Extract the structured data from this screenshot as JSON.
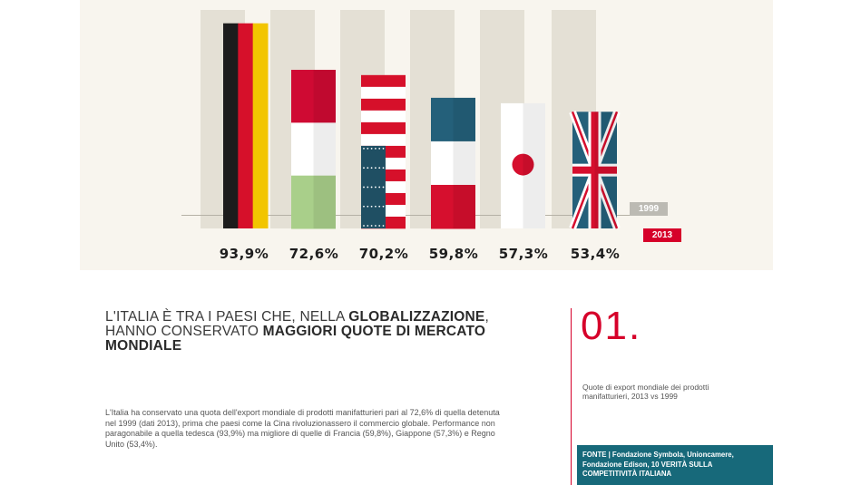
{
  "chart_data": {
    "type": "bar",
    "categories": [
      "Germania",
      "Italia",
      "Stati Uniti",
      "Francia",
      "Giappone",
      "Regno Unito"
    ],
    "values_label_fmt": "comma",
    "series": [
      {
        "name": "1999",
        "values": [
          100,
          100,
          100,
          100,
          100,
          100
        ]
      },
      {
        "name": "2013",
        "values": [
          93.9,
          72.6,
          70.2,
          59.8,
          57.3,
          53.4
        ]
      }
    ],
    "value_labels": [
      "93,9%",
      "72,6%",
      "70,2%",
      "59,8%",
      "57,3%",
      "53,4%"
    ],
    "flags": [
      "germany-flag",
      "italy-flag",
      "usa-flag",
      "france-flag",
      "japan-flag",
      "uk-flag"
    ],
    "ylim": [
      0,
      100
    ],
    "legend": [
      "1999",
      "2013"
    ],
    "colors": {
      "bar_1999": "#e4e0d5",
      "panel": "#f8f5ee",
      "tag_1999": "#bcbab3",
      "tag_2013": "#d6002a"
    }
  },
  "headline": {
    "part1": "L'Italia è tra i paesi che, nella ",
    "bold1": "globalizzazione",
    "part2": ", hanno conservato ",
    "bold2": "maggiori quote di mercato mondiale"
  },
  "body": "L'Italia ha conservato una quota dell'export mondiale di prodotti manifatturieri pari al 72,6% di quella detenuta nel 1999 (dati 2013), prima che paesi come la Cina rivoluzionassero il commercio globale. Performance non paragonabile a quella tedesca (93,9%) ma migliore di quelle di  Francia (59,8%), Giappone (57,3%) e Regno Unito (53,4%).",
  "number": "01",
  "number_dot": ".",
  "caption": "Quote di export mondiale dei prodotti manifatturieri, 2013 vs 1999",
  "source": {
    "label": "FONTE",
    "text": " | Fondazione Symbola, Unioncamere, Fondazione Edison, 10 VERITÀ SULLA COMPETITIVITÀ ITALIANA"
  }
}
